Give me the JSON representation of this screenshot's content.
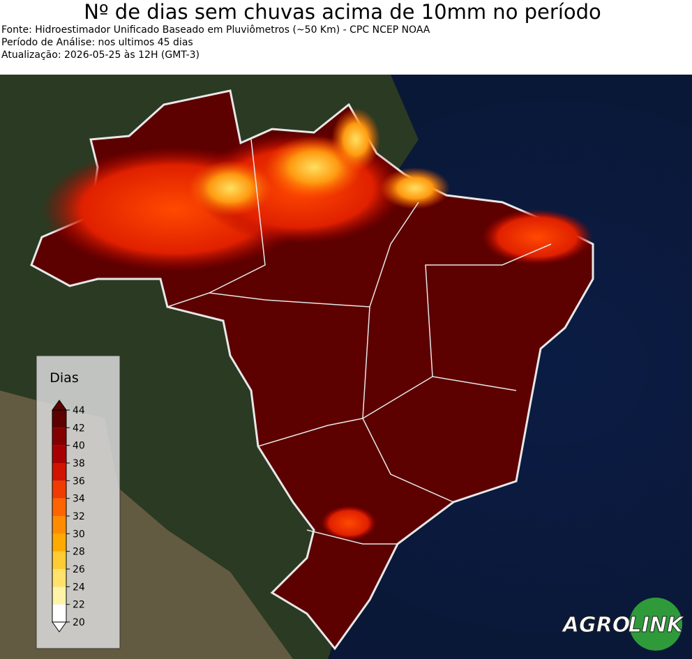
{
  "header": {
    "title": "Nº de dias sem chuvas acima de 10mm no período",
    "lines": [
      "Fonte: Hidroestimador Unificado Baseado em Pluviômetros (~50 Km) - CPC NCEP NOAA",
      "Período de Análise: nos ultimos 45 dias",
      "Atualização: 2026-05-25 às 12H (GMT-3)"
    ]
  },
  "colorbar": {
    "title": "Dias",
    "ticks": [
      20,
      22,
      24,
      26,
      28,
      30,
      32,
      34,
      36,
      38,
      40,
      42,
      44
    ],
    "colors": [
      "#ffffff",
      "#fff3a8",
      "#ffe26a",
      "#ffcc33",
      "#ffaa00",
      "#ff8c00",
      "#ff6400",
      "#f03c00",
      "#d01400",
      "#a80000",
      "#840000",
      "#5c0000"
    ]
  },
  "logo": [
    "AGRO",
    "LINK"
  ]
}
